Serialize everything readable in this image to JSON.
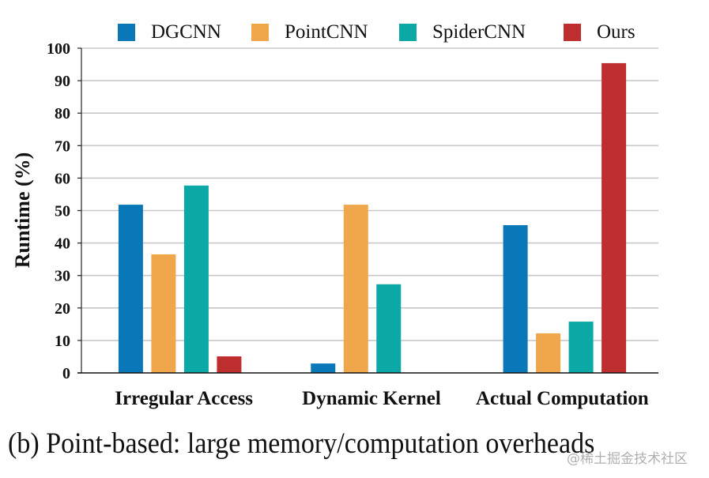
{
  "chart_data": {
    "type": "bar",
    "title": "",
    "xlabel": "",
    "ylabel": "Runtime (%)",
    "ylim": [
      0,
      100
    ],
    "yticks": [
      0,
      10,
      20,
      30,
      40,
      50,
      60,
      70,
      80,
      90,
      100
    ],
    "grid": true,
    "legend_position": "top",
    "categories": [
      "Irregular Access",
      "Dynamic Kernel",
      "Actual Computation"
    ],
    "series": [
      {
        "name": "DGCNN",
        "color": "#0A78B8",
        "values": [
          51.8,
          2.9,
          45.5
        ]
      },
      {
        "name": "PointCNN",
        "color": "#F0A64A",
        "values": [
          36.5,
          51.8,
          12.2
        ]
      },
      {
        "name": "SpiderCNN",
        "color": "#0BA8A6",
        "values": [
          57.7,
          27.3,
          15.8
        ]
      },
      {
        "name": "Ours",
        "color": "#BE2E2E",
        "values": [
          5.1,
          0,
          95.4
        ]
      }
    ]
  },
  "caption": "(b) Point-based: large memory/computation overheads",
  "watermark": "@稀土掘金技术社区"
}
